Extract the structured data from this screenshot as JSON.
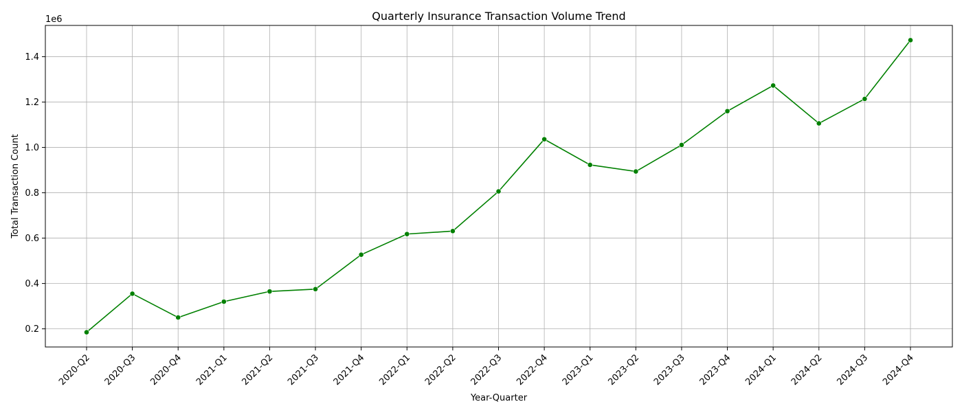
{
  "chart_data": {
    "type": "line",
    "title": "Quarterly Insurance Transaction Volume Trend",
    "xlabel": "Year-Quarter",
    "ylabel": "Total Transaction Count",
    "y_offset_label": "1e6",
    "y_scale_factor": 1000000,
    "categories": [
      "2020-Q2",
      "2020-Q3",
      "2020-Q4",
      "2021-Q1",
      "2021-Q2",
      "2021-Q3",
      "2021-Q4",
      "2022-Q1",
      "2022-Q2",
      "2022-Q3",
      "2022-Q4",
      "2023-Q1",
      "2023-Q2",
      "2023-Q3",
      "2023-Q4",
      "2024-Q1",
      "2024-Q2",
      "2024-Q3",
      "2024-Q4"
    ],
    "series": [
      {
        "values": [
          185000,
          355000,
          250000,
          320000,
          365000,
          375000,
          527000,
          618000,
          631000,
          806000,
          1036000,
          923000,
          894000,
          1011000,
          1160000,
          1273000,
          1106000,
          1214000,
          1473000
        ],
        "color": "#008000",
        "marker": "circle"
      }
    ],
    "yticks": [
      200000,
      400000,
      600000,
      800000,
      1000000,
      1200000,
      1400000
    ],
    "ytick_labels": [
      "0.2",
      "0.4",
      "0.6",
      "0.8",
      "1.0",
      "1.2",
      "1.4"
    ],
    "ylim": [
      120000,
      1538000
    ],
    "grid": true,
    "xtick_rotation": 45
  }
}
